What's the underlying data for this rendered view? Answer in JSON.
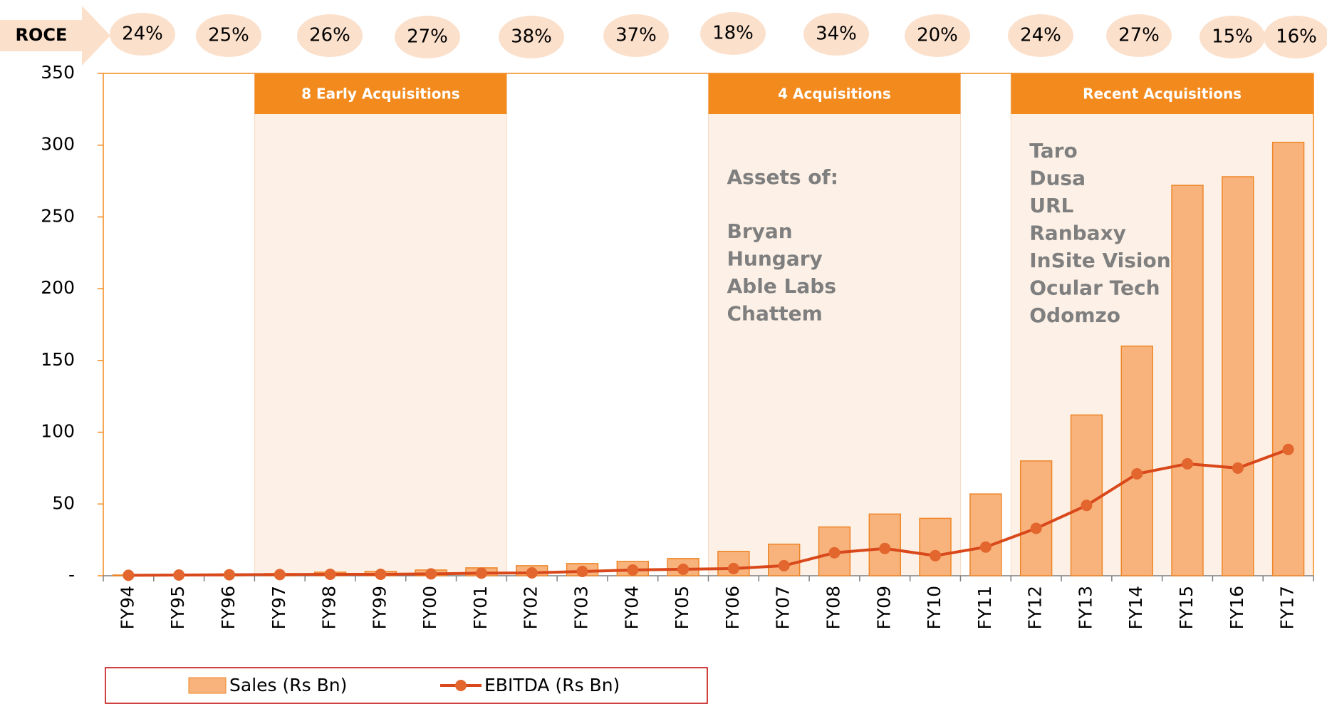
{
  "chart_data": {
    "type": "bar_line",
    "categories": [
      "FY94",
      "FY95",
      "FY96",
      "FY97",
      "FY98",
      "FY99",
      "FY00",
      "FY01",
      "FY02",
      "FY03",
      "FY04",
      "FY05",
      "FY06",
      "FY07",
      "FY08",
      "FY09",
      "FY10",
      "FY11",
      "FY12",
      "FY13",
      "FY14",
      "FY15",
      "FY16",
      "FY17"
    ],
    "series": [
      {
        "name": "Sales (Rs Bn)",
        "type": "bar",
        "color": "#f8b37c",
        "values": [
          0.5,
          0.7,
          1,
          1.5,
          2.5,
          3,
          4,
          5.5,
          7,
          8.5,
          10,
          12,
          17,
          22,
          34,
          43,
          40,
          57,
          80,
          112,
          160,
          272,
          278,
          302
        ]
      },
      {
        "name": "EBITDA (Rs Bn)",
        "type": "line",
        "color": "#d9481b",
        "values": [
          0.3,
          0.5,
          0.7,
          0.8,
          1,
          1,
          1.3,
          1.8,
          2,
          3,
          4,
          4.5,
          5,
          7,
          16,
          19,
          14,
          20,
          33,
          49,
          71,
          78,
          75,
          88
        ]
      }
    ],
    "ylim": [
      0,
      350
    ],
    "yticks": [
      {
        "value": 0,
        "label": "-"
      },
      50,
      100,
      150,
      200,
      250,
      300,
      350
    ],
    "roce": {
      "label": "ROCE",
      "values": [
        24,
        25,
        26,
        27,
        38,
        37,
        18,
        34,
        20,
        24,
        27,
        15,
        16
      ],
      "value_labels": [
        "24%",
        "25%",
        "26%",
        "27%",
        "38%",
        "37%",
        "18%",
        "34%",
        "20%",
        "24%",
        "27%",
        "15%",
        "16%"
      ]
    },
    "regions": [
      {
        "title": "8 Early Acquisitions",
        "items": []
      },
      {
        "title": "4 Acquisitions",
        "heading": "Assets of:",
        "items": [
          "Bryan",
          "Hungary",
          "Able Labs",
          "Chattem"
        ]
      },
      {
        "title": "Recent Acquisitions",
        "items": [
          "Taro",
          "Dusa",
          "URL",
          "Ranbaxy",
          "InSite Vision",
          "Ocular Tech",
          "Odomzo"
        ]
      }
    ]
  }
}
